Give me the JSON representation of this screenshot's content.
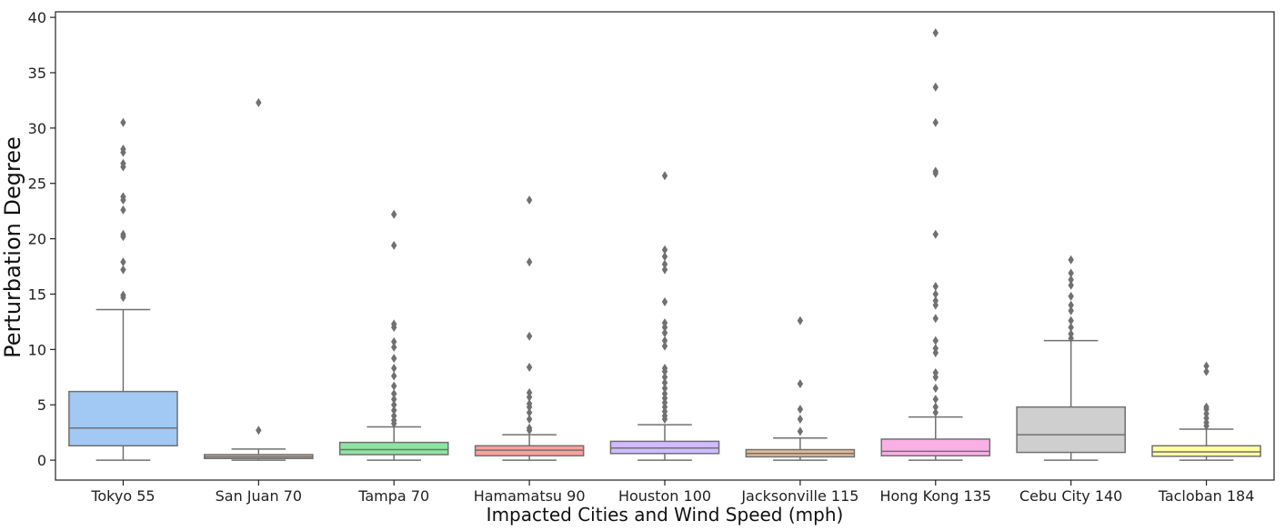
{
  "chart_data": {
    "type": "box",
    "xlabel": "Impacted Cities and Wind Speed (mph)",
    "ylabel": "Perturbation Degree",
    "ylim": [
      -1.8,
      40.5
    ],
    "yticks": [
      0,
      5,
      10,
      15,
      20,
      25,
      30,
      35,
      40
    ],
    "grid": false,
    "categories": [
      "Tokyo 55",
      "San Juan 70",
      "Tampa 70",
      "Hamamatsu 90",
      "Houston 100",
      "Jacksonville 115",
      "Hong Kong 135",
      "Cebu City 140",
      "Tacloban 184"
    ],
    "boxes": [
      {
        "min": 0,
        "q1": 1.3,
        "median": 2.9,
        "q3": 6.2,
        "max": 13.6,
        "color": "#a1c9f4",
        "outliers": [
          14.7,
          14.9,
          17.2,
          17.9,
          20.2,
          20.4,
          22.6,
          23.5,
          23.8,
          26.5,
          26.8,
          27.8,
          28.1,
          30.5
        ]
      },
      {
        "min": 0,
        "q1": 0.15,
        "median": 0.3,
        "q3": 0.5,
        "max": 1.0,
        "color": "#debb9b",
        "outliers": [
          2.7,
          32.3
        ]
      },
      {
        "min": 0,
        "q1": 0.5,
        "median": 0.95,
        "q3": 1.6,
        "max": 3.0,
        "color": "#8de5a1",
        "outliers": [
          3.3,
          3.6,
          4.0,
          4.5,
          5.0,
          5.5,
          6.0,
          6.7,
          7.6,
          8.3,
          9.2,
          10.2,
          10.7,
          12.0,
          12.3,
          19.4,
          22.2
        ]
      },
      {
        "min": 0,
        "q1": 0.4,
        "median": 0.9,
        "q3": 1.3,
        "max": 2.3,
        "color": "#ff9f9b",
        "outliers": [
          2.7,
          2.9,
          3.7,
          4.3,
          4.8,
          5.1,
          5.7,
          6.1,
          8.4,
          11.2,
          17.9,
          23.5
        ]
      },
      {
        "min": 0,
        "q1": 0.6,
        "median": 1.1,
        "q3": 1.7,
        "max": 3.2,
        "color": "#d0bbff",
        "outliers": [
          3.7,
          4.0,
          4.4,
          4.8,
          5.2,
          5.6,
          6.0,
          6.5,
          7.0,
          7.5,
          8.0,
          8.3,
          10.3,
          10.8,
          11.5,
          12.0,
          12.4,
          14.3,
          17.2,
          17.7,
          18.4,
          19.0,
          25.7
        ]
      },
      {
        "min": 0,
        "q1": 0.3,
        "median": 0.6,
        "q3": 0.95,
        "max": 2.0,
        "color": "#debb9b",
        "outliers": [
          2.6,
          3.7,
          4.6,
          6.9,
          12.6
        ]
      },
      {
        "min": 0,
        "q1": 0.4,
        "median": 0.8,
        "q3": 1.9,
        "max": 3.9,
        "color": "#fab0e4",
        "outliers": [
          4.3,
          4.8,
          5.5,
          6.5,
          7.5,
          7.9,
          9.7,
          10.1,
          10.8,
          12.8,
          14.0,
          14.4,
          15.0,
          15.7,
          20.4,
          25.9,
          26.1,
          30.5,
          33.7,
          38.6
        ]
      },
      {
        "min": 0,
        "q1": 0.7,
        "median": 2.3,
        "q3": 4.8,
        "max": 10.8,
        "color": "#cfcfcf",
        "outliers": [
          11.0,
          11.4,
          12.0,
          12.6,
          13.5,
          14.0,
          14.8,
          15.8,
          16.3,
          16.9,
          18.1
        ]
      },
      {
        "min": 0,
        "q1": 0.35,
        "median": 0.75,
        "q3": 1.3,
        "max": 2.8,
        "color": "#fffea3",
        "outliers": [
          3.1,
          3.4,
          3.8,
          4.2,
          4.6,
          4.8,
          8.0,
          8.5
        ]
      }
    ]
  }
}
